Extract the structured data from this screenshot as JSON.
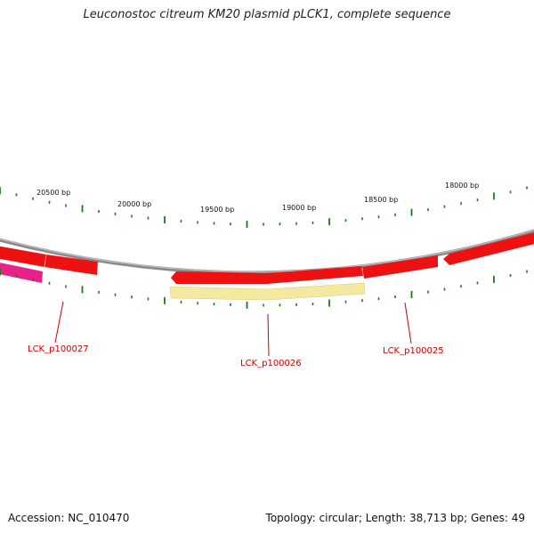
{
  "title": "Leuconostoc citreum KM20 plasmid pLCK1, complete sequence",
  "accession": "Accession: NC_010470",
  "summary": "Topology: circular; Length: 38,713 bp; Genes: 49",
  "scale_labels": [
    "20500 bp",
    "20000 bp",
    "19500 bp",
    "19000 bp",
    "18500 bp",
    "18000 bp"
  ],
  "genes": [
    {
      "id": "LCK_p100027"
    },
    {
      "id": "LCK_p100026"
    },
    {
      "id": "LCK_p100025"
    }
  ],
  "colors": {
    "backbone": "#8a8a8a",
    "gene": "#ee1111",
    "gene_highlight": "#ff7777",
    "gene_magenta": "#e8228a",
    "yellow_feature": "#f3e9a0",
    "tick": "#1a7a1a",
    "label": "#cc0000"
  }
}
